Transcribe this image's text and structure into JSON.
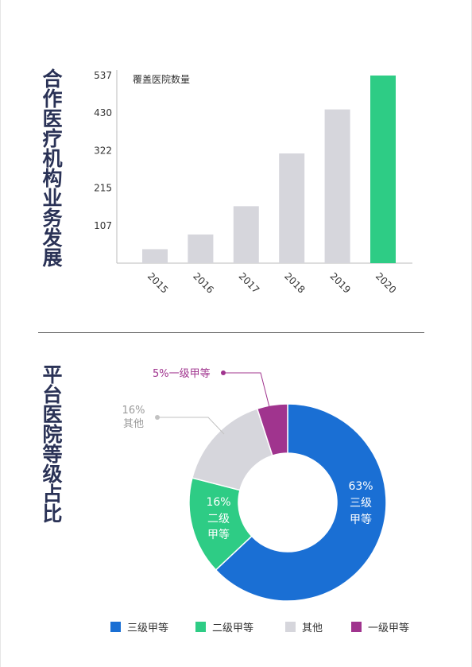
{
  "section1": {
    "title": "合作医疗机构业务发展"
  },
  "section2": {
    "title": "平台医院等级占比"
  },
  "chart_data": [
    {
      "type": "bar",
      "title": "覆盖医院数量",
      "categories": [
        "2015",
        "2016",
        "2017",
        "2018",
        "2019",
        "2020"
      ],
      "values": [
        40,
        82,
        163,
        314,
        440,
        537
      ],
      "yticks": [
        107,
        215,
        322,
        430,
        537
      ],
      "ylim": [
        0,
        537
      ],
      "highlight_index": 5,
      "colors": {
        "bar": "#d6d6dc",
        "highlight": "#2ecc85",
        "axis": "#bbbbbb"
      },
      "grid": false
    },
    {
      "type": "pie",
      "donut": true,
      "slices": [
        {
          "name": "三级甲等",
          "value": 63,
          "label": "63%",
          "color": "#1a6fd4"
        },
        {
          "name": "二级甲等",
          "value": 16,
          "label": "16%",
          "color": "#2ecc85"
        },
        {
          "name": "其他",
          "value": 16,
          "label": "16%",
          "color": "#d6d6dc"
        },
        {
          "name": "一级甲等",
          "value": 5,
          "label": "5%",
          "color": "#a0348e"
        }
      ],
      "annotations": {
        "level1": "5%一级甲等",
        "other_pct": "16%",
        "other_name": "其他",
        "level3_pct": "63%",
        "level3_name_1": "三级",
        "level3_name_2": "甲等",
        "level2_pct": "16%",
        "level2_name_1": "二级",
        "level2_name_2": "甲等"
      },
      "legend": {
        "position": "bottom",
        "items": [
          "三级甲等",
          "二级甲等",
          "其他",
          "一级甲等"
        ]
      }
    }
  ]
}
